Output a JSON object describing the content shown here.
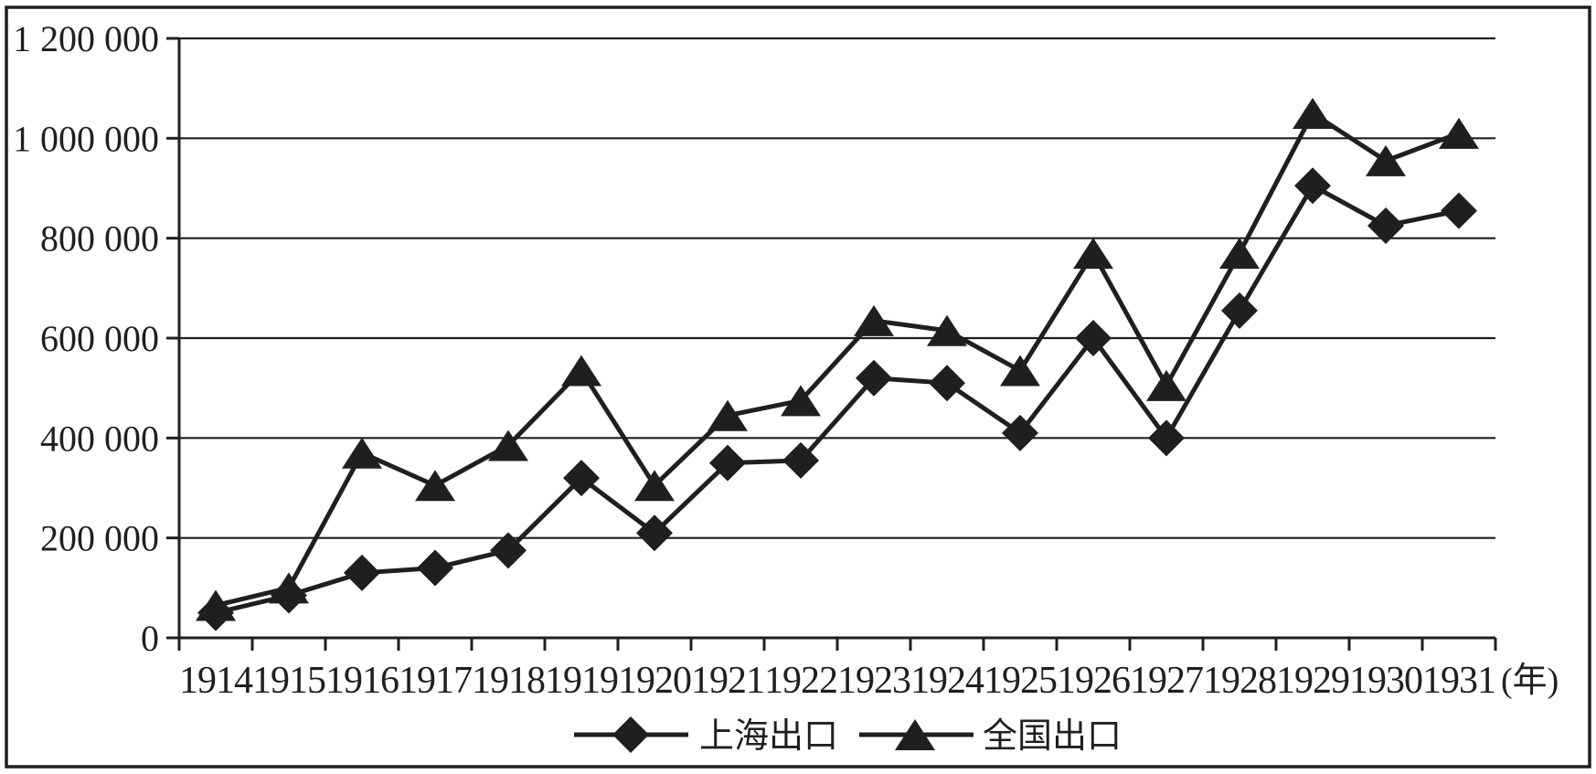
{
  "chart_data": {
    "type": "line",
    "title": "",
    "categories": [
      "1914",
      "1915",
      "1916",
      "1917",
      "1918",
      "1919",
      "1920",
      "1921",
      "1922",
      "1923",
      "1924",
      "1925",
      "1926",
      "1927",
      "1928",
      "1929",
      "1930",
      "1931"
    ],
    "x_axis_unit_label": "(年)",
    "series": [
      {
        "name": "上海出口",
        "marker": "diamond",
        "values": [
          50000,
          85000,
          130000,
          140000,
          175000,
          320000,
          210000,
          350000,
          355000,
          520000,
          510000,
          410000,
          600000,
          400000,
          655000,
          905000,
          825000,
          855000
        ]
      },
      {
        "name": "全国出口",
        "marker": "triangle",
        "values": [
          65000,
          100000,
          370000,
          305000,
          385000,
          535000,
          305000,
          445000,
          475000,
          635000,
          615000,
          535000,
          770000,
          505000,
          770000,
          1050000,
          955000,
          1010000
        ]
      }
    ],
    "ylim": [
      0,
      1200000
    ],
    "ytick_step": 200000,
    "ytick_labels": [
      "0",
      "200 000",
      "400 000",
      "600 000",
      "800 000",
      "1 000 000",
      "1 200 000"
    ],
    "grid": "horizontal",
    "legend_position": "bottom-center",
    "line_color": "#1f1f1f",
    "background": "#ffffff"
  }
}
